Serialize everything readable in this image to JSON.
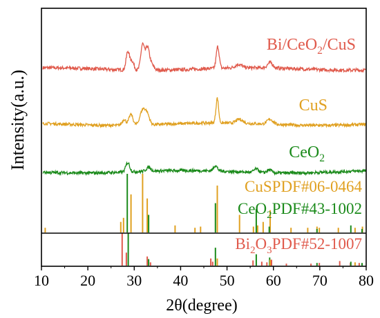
{
  "chart_data": {
    "type": "line",
    "xlabel": "2θ(degree)",
    "ylabel": "Intensity(a.u.)",
    "xlim": [
      10,
      80
    ],
    "xticks": [
      10,
      20,
      30,
      40,
      50,
      60,
      70,
      80
    ],
    "yaxis_ticks_labeled": false,
    "grid": false,
    "legend": "inline labels",
    "colors": {
      "bi_ceo2_cus": "#e05a4c",
      "cus": "#e0a020",
      "ceo2": "#1a8a1a",
      "axis": "#000000"
    },
    "series": [
      {
        "name": "Bi/CeO2/CuS",
        "label_parts": [
          "Bi/CeO",
          "2",
          "/CuS"
        ],
        "color": "#e05a4c",
        "baseline_offset": 10,
        "noise": 0.35,
        "peaks": [
          {
            "x": 28.6,
            "h": 3.6,
            "w": 0.5
          },
          {
            "x": 29.5,
            "h": 1.8,
            "w": 0.6
          },
          {
            "x": 31.8,
            "h": 5.2,
            "w": 0.55
          },
          {
            "x": 32.8,
            "h": 4.0,
            "w": 0.55
          },
          {
            "x": 33.5,
            "h": 1.5,
            "w": 0.8
          },
          {
            "x": 48.0,
            "h": 4.4,
            "w": 0.45
          },
          {
            "x": 52.5,
            "h": 0.7,
            "w": 1.0
          },
          {
            "x": 59.3,
            "h": 1.1,
            "w": 0.8
          }
        ]
      },
      {
        "name": "CuS",
        "label_parts": [
          "CuS"
        ],
        "color": "#e0a020",
        "baseline_offset": 5.2,
        "noise": 0.3,
        "peaks": [
          {
            "x": 27.8,
            "h": 1.2,
            "w": 0.6
          },
          {
            "x": 29.3,
            "h": 2.2,
            "w": 0.6
          },
          {
            "x": 31.8,
            "h": 3.0,
            "w": 0.8
          },
          {
            "x": 32.8,
            "h": 2.0,
            "w": 0.7
          },
          {
            "x": 47.9,
            "h": 5.0,
            "w": 0.4
          },
          {
            "x": 52.7,
            "h": 0.8,
            "w": 1.0
          },
          {
            "x": 59.3,
            "h": 1.0,
            "w": 0.9
          }
        ]
      },
      {
        "name": "CeO2",
        "label_parts": [
          "CeO",
          "2"
        ],
        "color": "#1a8a1a",
        "baseline_offset": 0.8,
        "noise": 0.32,
        "peaks": [
          {
            "x": 28.6,
            "h": 1.9,
            "w": 0.6
          },
          {
            "x": 33.1,
            "h": 0.8,
            "w": 0.7
          },
          {
            "x": 47.5,
            "h": 1.1,
            "w": 0.6
          },
          {
            "x": 56.3,
            "h": 0.7,
            "w": 0.7
          },
          {
            "x": 59.1,
            "h": 0.6,
            "w": 0.7
          }
        ]
      }
    ],
    "reference_patterns": [
      {
        "name": "CuS PDF#06-0464",
        "label_parts": [
          "CuSPDF#06-0464"
        ],
        "color": "#e0a020",
        "panel": "upper",
        "lines": [
          {
            "x": 10.8,
            "i": 8
          },
          {
            "x": 27.1,
            "i": 18
          },
          {
            "x": 27.7,
            "i": 25
          },
          {
            "x": 29.3,
            "i": 65
          },
          {
            "x": 31.8,
            "i": 100
          },
          {
            "x": 32.8,
            "i": 58
          },
          {
            "x": 38.8,
            "i": 12
          },
          {
            "x": 43.1,
            "i": 8
          },
          {
            "x": 44.3,
            "i": 10
          },
          {
            "x": 47.9,
            "i": 80
          },
          {
            "x": 52.7,
            "i": 30
          },
          {
            "x": 55.7,
            "i": 10
          },
          {
            "x": 56.6,
            "i": 12
          },
          {
            "x": 57.8,
            "i": 18
          },
          {
            "x": 59.3,
            "i": 38
          },
          {
            "x": 63.8,
            "i": 8
          },
          {
            "x": 67.4,
            "i": 8
          },
          {
            "x": 69.4,
            "i": 10
          },
          {
            "x": 69.9,
            "i": 8
          },
          {
            "x": 74.0,
            "i": 8
          },
          {
            "x": 77.6,
            "i": 8
          },
          {
            "x": 79.2,
            "i": 10
          }
        ]
      },
      {
        "name": "CeO2 PDF#43-1002",
        "label_parts": [
          "CeO",
          "2",
          "PDF#43-1002"
        ],
        "color": "#1a8a1a",
        "panel": "upper",
        "lines": [
          {
            "x": 28.5,
            "i": 100
          },
          {
            "x": 33.1,
            "i": 30
          },
          {
            "x": 47.5,
            "i": 50
          },
          {
            "x": 56.3,
            "i": 40
          },
          {
            "x": 59.1,
            "i": 10
          },
          {
            "x": 69.4,
            "i": 6
          },
          {
            "x": 76.7,
            "i": 12
          },
          {
            "x": 79.1,
            "i": 6
          }
        ]
      },
      {
        "name": "Bi2O3 PDF#52-1007",
        "label_parts": [
          "Bi",
          "2",
          "O",
          "3",
          "PDF#52-1007"
        ],
        "color": "#e05a4c",
        "panel": "lower",
        "lines": [
          {
            "x": 27.4,
            "i": 100
          },
          {
            "x": 28.3,
            "i": 40
          },
          {
            "x": 32.8,
            "i": 28
          },
          {
            "x": 33.5,
            "i": 10
          },
          {
            "x": 46.5,
            "i": 22
          },
          {
            "x": 46.9,
            "i": 12
          },
          {
            "x": 55.6,
            "i": 16
          },
          {
            "x": 57.5,
            "i": 12
          },
          {
            "x": 58.6,
            "i": 10
          },
          {
            "x": 59.6,
            "i": 18
          },
          {
            "x": 62.8,
            "i": 6
          },
          {
            "x": 68.1,
            "i": 6
          },
          {
            "x": 69.9,
            "i": 8
          },
          {
            "x": 74.3,
            "i": 14
          },
          {
            "x": 76.6,
            "i": 8
          },
          {
            "x": 78.5,
            "i": 8
          }
        ]
      },
      {
        "name": "CeO2 PDF#43-1002 (lower)",
        "label_parts": [],
        "color": "#1a8a1a",
        "panel": "lower",
        "lines": [
          {
            "x": 28.7,
            "i": 100
          },
          {
            "x": 33.1,
            "i": 20
          },
          {
            "x": 47.5,
            "i": 55
          },
          {
            "x": 56.3,
            "i": 35
          },
          {
            "x": 59.2,
            "i": 25
          },
          {
            "x": 69.4,
            "i": 8
          },
          {
            "x": 76.7,
            "i": 12
          },
          {
            "x": 79.1,
            "i": 8
          }
        ]
      },
      {
        "name": "CuS PDF#06-0464 (lower)",
        "label_parts": [],
        "color": "#e0a020",
        "panel": "lower",
        "lines": [
          {
            "x": 47.9,
            "i": 22
          },
          {
            "x": 59.3,
            "i": 18
          },
          {
            "x": 77.6,
            "i": 10
          }
        ]
      }
    ]
  }
}
